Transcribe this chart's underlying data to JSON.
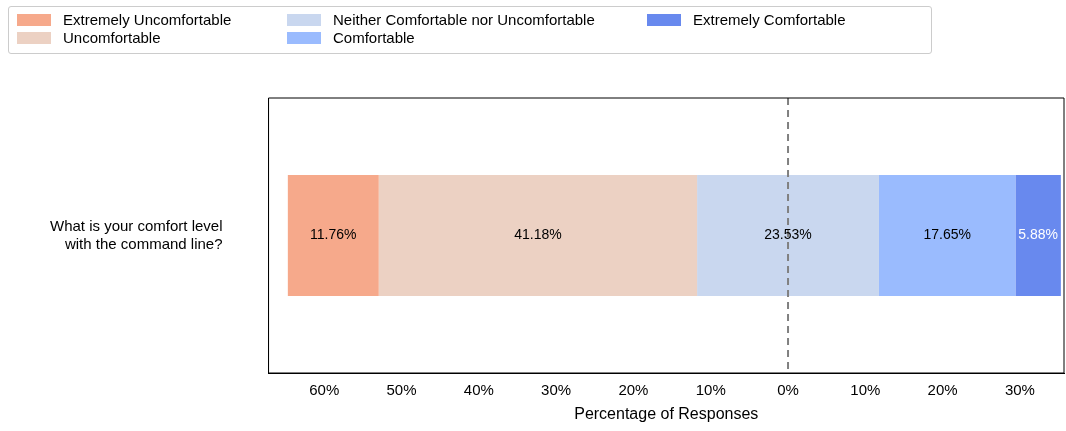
{
  "chart_data": {
    "type": "bar",
    "orientation": "horizontal",
    "xlabel": "Percentage of Responses",
    "categories": [
      "What is your comfort level with the command line?"
    ],
    "series": [
      {
        "name": "Extremely Uncomfortable",
        "color": "#f6a98b",
        "values": [
          11.76
        ],
        "base": [
          -64.705
        ],
        "value_labels": [
          "11.76%"
        ]
      },
      {
        "name": "Uncomfortable",
        "color": "#ecd1c3",
        "values": [
          41.18
        ],
        "base": [
          -52.945
        ],
        "value_labels": [
          "41.18%"
        ]
      },
      {
        "name": "Neither Comfortable nor Uncomfortable",
        "color": "#c9d7ef",
        "values": [
          23.53
        ],
        "base": [
          -11.765
        ],
        "value_labels": [
          "23.53%"
        ]
      },
      {
        "name": "Comfortable",
        "color": "#9abbfe",
        "values": [
          17.65
        ],
        "base": [
          11.765
        ],
        "value_labels": [
          "17.65%"
        ]
      },
      {
        "name": "Extremely Comfortable",
        "color": "#6889ee",
        "values": [
          5.88
        ],
        "base": [
          29.415
        ],
        "value_labels": [
          "5.88%"
        ]
      }
    ],
    "xlim": [
      -67.2,
      35.7
    ],
    "xticks": [
      {
        "value": -60,
        "label": "60%"
      },
      {
        "value": -50,
        "label": "50%"
      },
      {
        "value": -40,
        "label": "40%"
      },
      {
        "value": -30,
        "label": "30%"
      },
      {
        "value": -20,
        "label": "20%"
      },
      {
        "value": -10,
        "label": "10%"
      },
      {
        "value": 0,
        "label": "0%"
      },
      {
        "value": 10,
        "label": "10%"
      },
      {
        "value": 20,
        "label": "20%"
      },
      {
        "value": 30,
        "label": "30%"
      }
    ],
    "ref_lines": [
      {
        "axis": "x",
        "value": 0,
        "color": "#808080",
        "line_style": "dashed"
      }
    ],
    "grid": false,
    "legend": "top left"
  }
}
